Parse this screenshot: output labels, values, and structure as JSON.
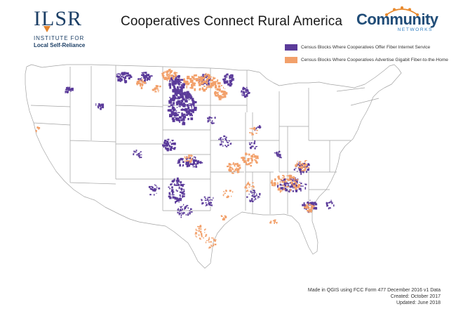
{
  "title": "Cooperatives Connect Rural America",
  "logos": {
    "ilsr_mark": "ILSR",
    "ilsr_line1": "INSTITUTE FOR",
    "ilsr_line2": "Local Self-Reliance",
    "community_networks_word": "Community",
    "community_networks_sub": "NETWORKS"
  },
  "legend": [
    {
      "label": "Census Blocks Where Cooperatives Offer Fiber Internet Service",
      "color": "#5b3b9a"
    },
    {
      "label": "Census Blocks Where Cooperatives Advertise Gigabit Fiber-to-the-Home",
      "color": "#f2a06a"
    }
  ],
  "credits": {
    "line1": "Made in QGIS using FCC Form 477 December 2016 v1 Data",
    "line2": "Created: October 2017",
    "line3": "Updated: June 2018"
  },
  "colors": {
    "fiber": "#5b3b9a",
    "gigabit": "#f2a06a",
    "state_border": "#9a9a9a",
    "brand_blue": "#1c3f66",
    "brand_orange": "#e2822b"
  }
}
